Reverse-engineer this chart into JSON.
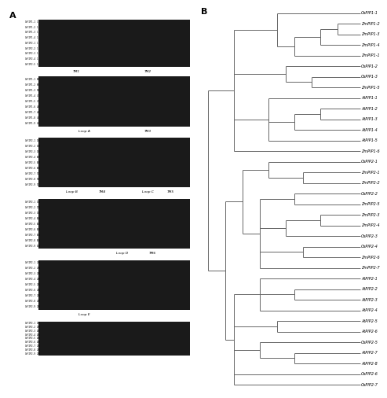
{
  "panel_b_labels": [
    "OsPIP1-1",
    "ZmPIP1-2",
    "ZmPIP1-3",
    "ZmPIP1-4",
    "ZmPIP1-1",
    "OsPIP1-2",
    "OsPIP1-3",
    "ZmPIP1-5",
    "AtPIP1-1",
    "AtPIP1-2",
    "AtPIP1-3",
    "AtPIP1-4",
    "AtPIP1-5",
    "ZmPIP1-6",
    "OsPIP2-1",
    "ZmPIP2-1",
    "ZmPIP2-2",
    "OsPIP2-2",
    "ZmPIP2-5",
    "ZmPIP2-3",
    "ZmPIP2-4",
    "OsPIP2-3",
    "OsPIP2-4",
    "ZmPIP2-6",
    "ZmPIP2-7",
    "AtPIP2-1",
    "AtPIP2-2",
    "AtPIP2-3",
    "AtPIP2-4",
    "AtPIP2-5",
    "AtPIP2-6",
    "OsPIP2-5",
    "AtPIP2-7",
    "AtPIP2-8",
    "OsPIP2-6",
    "OsPIP2-7"
  ],
  "tree_color": "#666666",
  "label_fontsize": 3.5,
  "bg_color": "#ffffff",
  "panel_a_color": "#cccccc",
  "line_width": 0.7
}
